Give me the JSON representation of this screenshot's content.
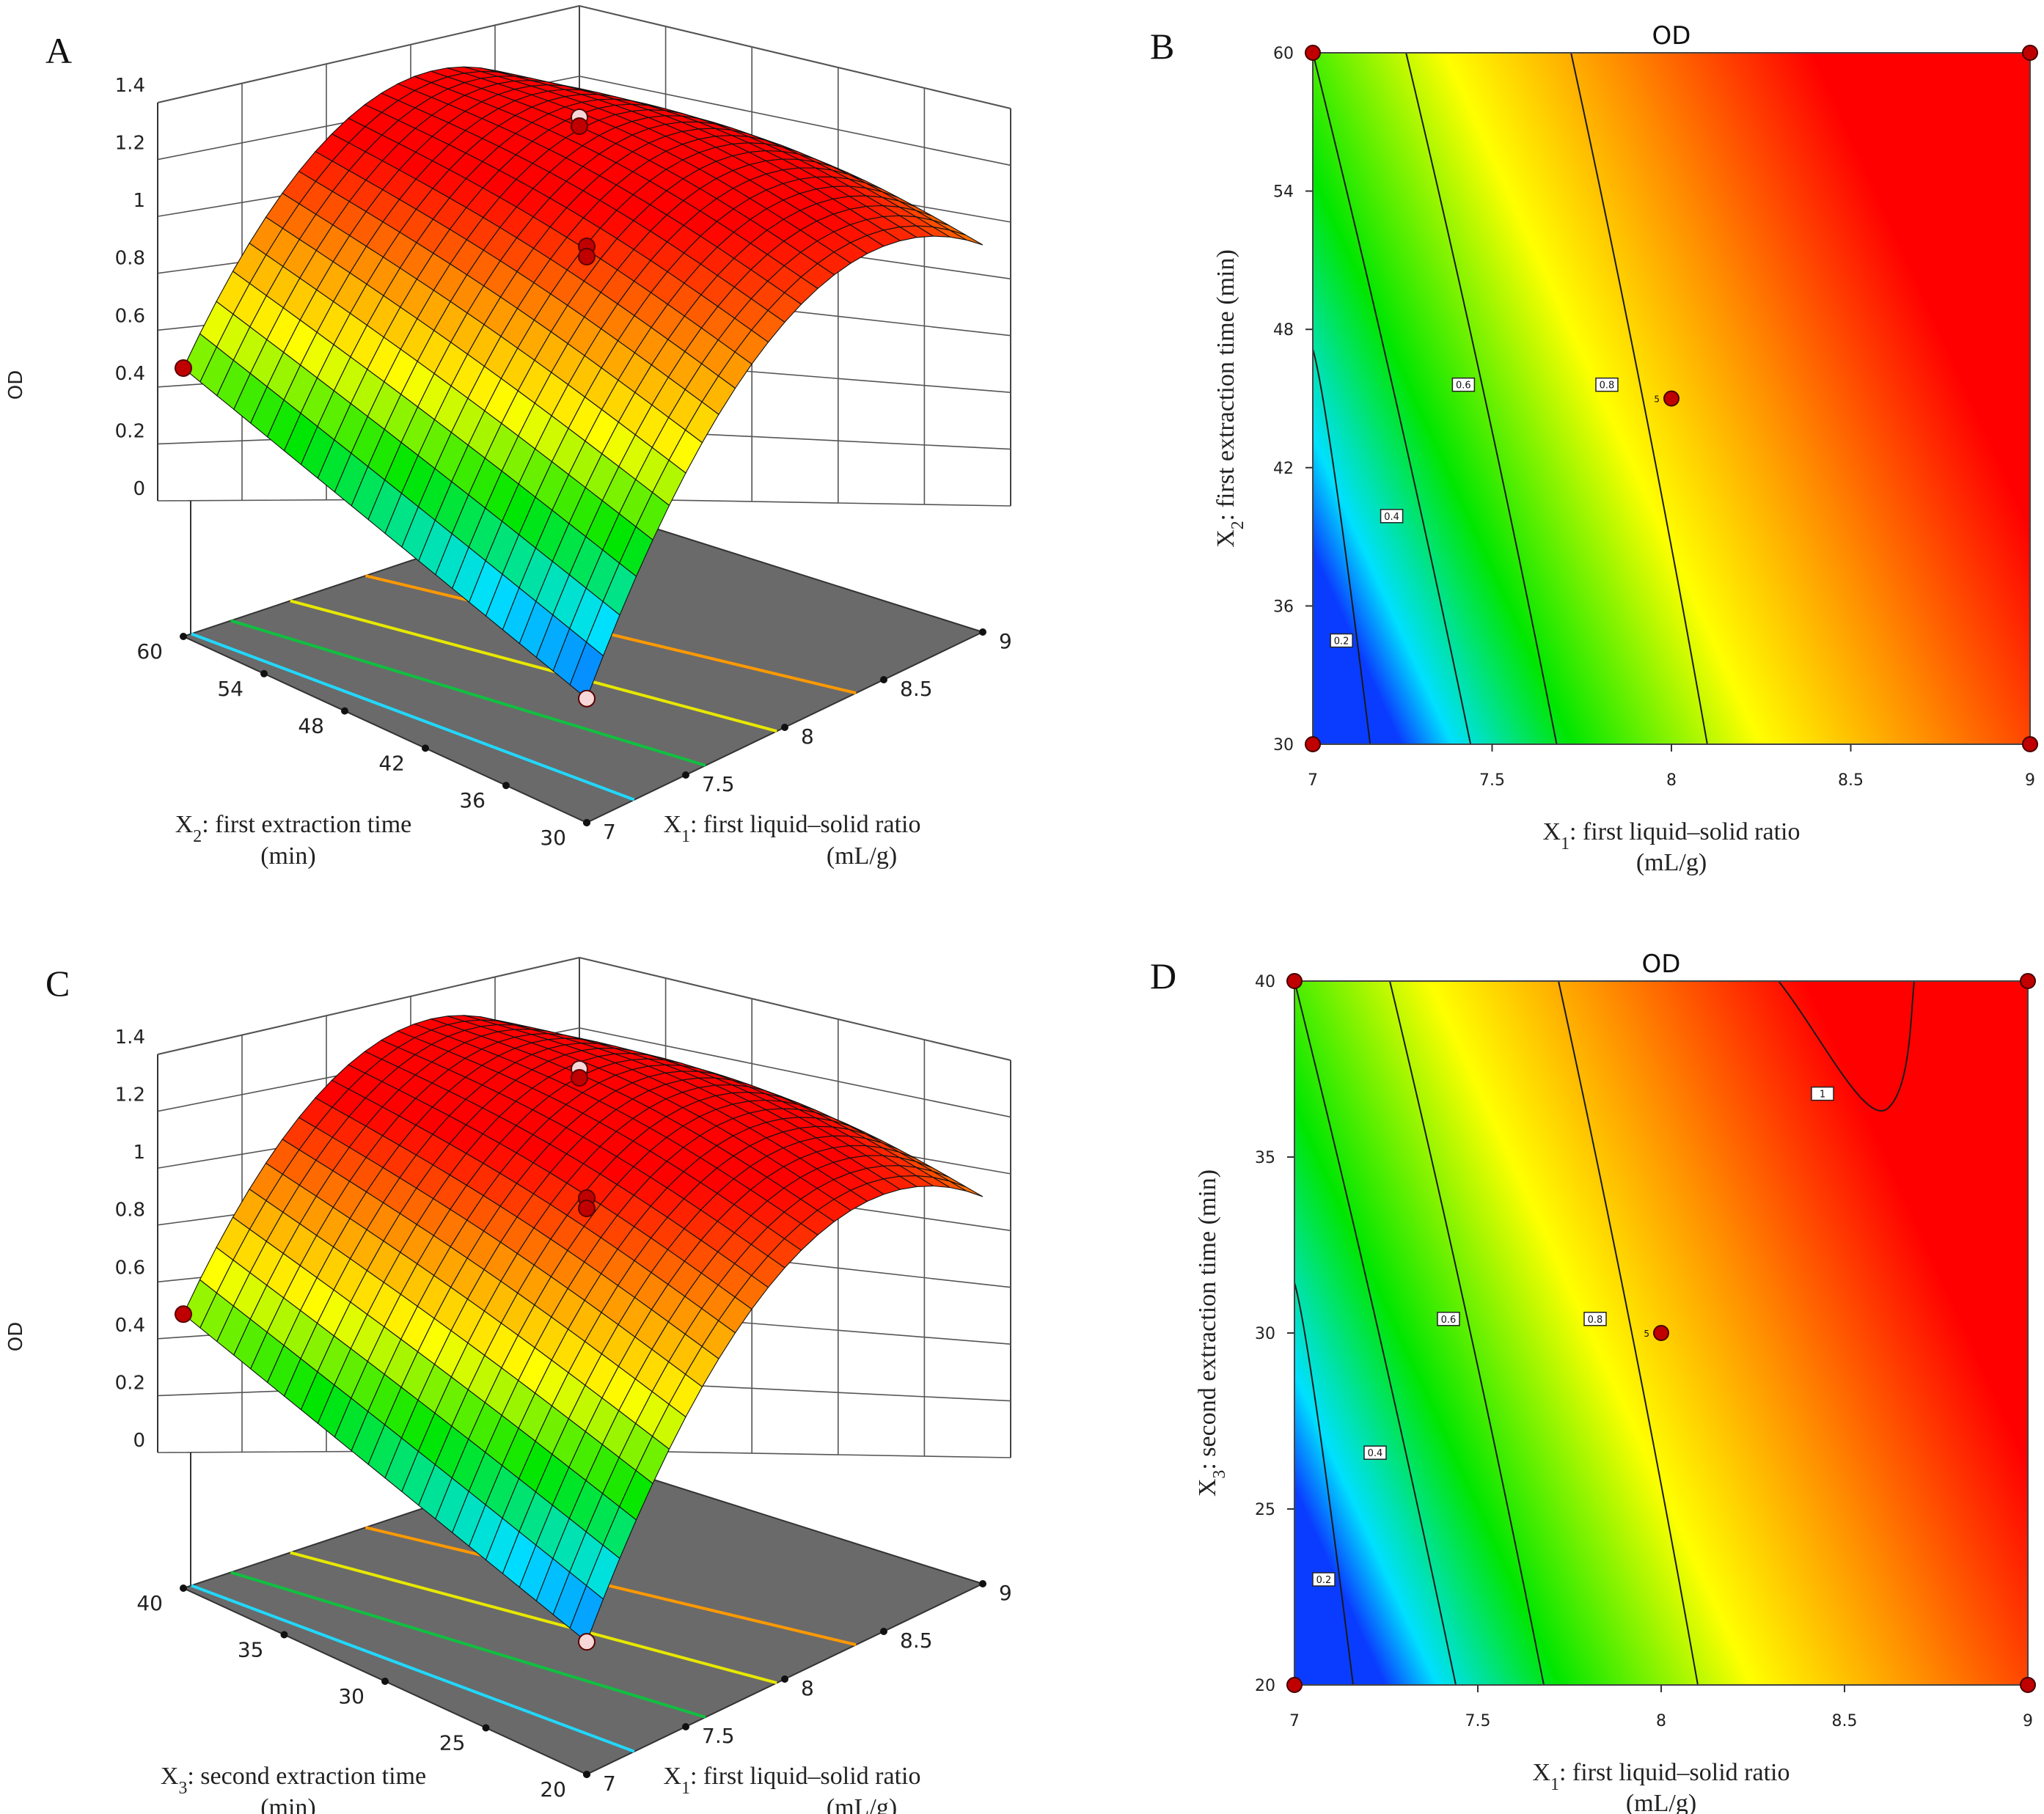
{
  "colors": {
    "scale": [
      "#0a3cff",
      "#00e0ff",
      "#00e600",
      "#ffff00",
      "#ff8c00",
      "#ff0000"
    ],
    "floor": "#6a6a6a",
    "design_point_red": "#c00000",
    "design_point_pink": "#f7d7d7"
  },
  "chart_data": [
    {
      "panel": "A",
      "type": "surface3d",
      "zlabel": "OD",
      "x1": {
        "label_var": "X",
        "label_sub": "1",
        "label_rest": ": first liquid–solid ratio",
        "label_line2": "(mL/g)",
        "ticks": [
          "7",
          "7.5",
          "8",
          "8.5",
          "9"
        ],
        "range": [
          7,
          9
        ]
      },
      "x2": {
        "label_var": "X",
        "label_sub": "2",
        "label_rest": ": first extraction time",
        "label_line2": "(min)",
        "ticks": [
          "60",
          "54",
          "48",
          "42",
          "36",
          "30"
        ],
        "range": [
          30,
          60
        ]
      },
      "zticks": [
        "0",
        "0.2",
        "0.4",
        "0.6",
        "0.8",
        "1",
        "1.2",
        "1.4"
      ],
      "zlim": [
        0,
        1.4
      ],
      "corner_values": {
        "x1_7_x2_30": 0.05,
        "x1_7_x2_60": 0.56,
        "x1_9_x2_30": 0.98,
        "x1_9_x2_60": 0.98
      },
      "peak_value": 1.23,
      "floor_contours": [
        0.2,
        0.4,
        0.6,
        0.8
      ]
    },
    {
      "panel": "B",
      "type": "contour",
      "title": "OD",
      "xlabel_var": "X",
      "xlabel_sub": "1",
      "xlabel_rest": ": first liquid–solid ratio",
      "xlabel_line2": "(mL/g)",
      "ylabel_var": "X",
      "ylabel_sub": "2",
      "ylabel_rest": ": first extraction time (min)",
      "xticks": [
        "7",
        "7.5",
        "8",
        "8.5",
        "9"
      ],
      "yticks": [
        "30",
        "36",
        "42",
        "48",
        "54",
        "60"
      ],
      "xlim": [
        7,
        9
      ],
      "ylim": [
        30,
        60
      ],
      "contour_labels": [
        "0.2",
        "0.4",
        "0.6",
        "0.8"
      ],
      "center_point": {
        "x": 8,
        "y": 45,
        "label": "5"
      }
    },
    {
      "panel": "C",
      "type": "surface3d",
      "zlabel": "OD",
      "x1": {
        "label_var": "X",
        "label_sub": "1",
        "label_rest": ": first liquid–solid ratio",
        "label_line2": "(mL/g)",
        "ticks": [
          "7",
          "7.5",
          "8",
          "8.5",
          "9"
        ],
        "range": [
          7,
          9
        ]
      },
      "x2": {
        "label_var": "X",
        "label_sub": "3",
        "label_rest": ": second extraction time",
        "label_line2": "(min)",
        "ticks": [
          "40",
          "35",
          "30",
          "25",
          "20"
        ],
        "range": [
          20,
          40
        ]
      },
      "zticks": [
        "0",
        "0.2",
        "0.4",
        "0.6",
        "0.8",
        "1",
        "1.2",
        "1.4"
      ],
      "zlim": [
        0,
        1.4
      ],
      "corner_values": {
        "x1_7_x2_30": 0.08,
        "x1_7_x2_60": 0.58,
        "x1_9_x2_30": 0.98,
        "x1_9_x2_60": 0.98
      },
      "peak_value": 1.25,
      "floor_contours": [
        0.2,
        0.4,
        0.6,
        0.8
      ]
    },
    {
      "panel": "D",
      "type": "contour",
      "title": "OD",
      "xlabel_var": "X",
      "xlabel_sub": "1",
      "xlabel_rest": ": first liquid–solid ratio",
      "xlabel_line2": "(mL/g)",
      "ylabel_var": "X",
      "ylabel_sub": "3",
      "ylabel_rest": ": second extraction time (min)",
      "xticks": [
        "7",
        "7.5",
        "8",
        "8.5",
        "9"
      ],
      "yticks": [
        "20",
        "25",
        "30",
        "35",
        "40"
      ],
      "xlim": [
        7,
        9
      ],
      "ylim": [
        20,
        40
      ],
      "contour_labels": [
        "0.2",
        "0.4",
        "0.6",
        "0.8",
        "1"
      ],
      "center_point": {
        "x": 8,
        "y": 30,
        "label": "5"
      }
    }
  ]
}
